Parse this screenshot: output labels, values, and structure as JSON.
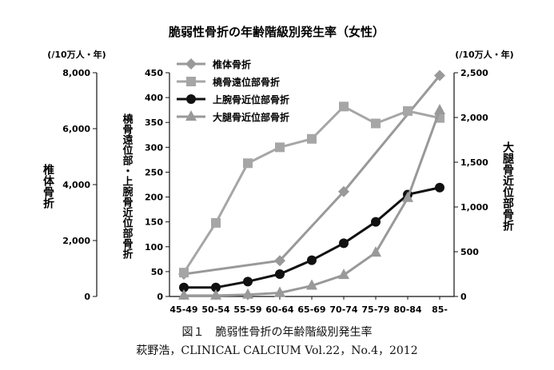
{
  "chart_data": {
    "type": "line",
    "title": "脆弱性骨折の年齢階級別発生率（女性）",
    "categories": [
      "45-49",
      "50-54",
      "55-59",
      "60-64",
      "65-69",
      "70-74",
      "75-79",
      "80-84",
      "85-"
    ],
    "axes": {
      "left_outer": {
        "label": "椎体骨折",
        "unit": "(/10万人・年)",
        "ticks": [
          "8,000",
          "6,000",
          "4,000",
          "2,000",
          "0"
        ],
        "range": [
          0,
          8000
        ]
      },
      "left_inner": {
        "label": "橈骨遠位部・上腕骨近位部骨折",
        "ticks": [
          "450",
          "400",
          "350",
          "300",
          "250",
          "200",
          "150",
          "100",
          "50",
          "0"
        ],
        "range": [
          0,
          450
        ]
      },
      "right": {
        "label": "大腿骨近位部骨折",
        "unit": "(/10万人・年)",
        "ticks": [
          "2,500",
          "2,000",
          "1,500",
          "1,000",
          "500",
          "0"
        ],
        "range": [
          0,
          2500
        ]
      }
    },
    "series": [
      {
        "name": "椎体骨折",
        "axis": "left_outer",
        "marker": "diamond",
        "color": "#999999",
        "points": [
          [
            "45-49",
            800
          ],
          [
            "60-64",
            1280
          ],
          [
            "70-74",
            3750
          ],
          [
            "85-",
            7900
          ]
        ]
      },
      {
        "name": "橈骨遠位部骨折",
        "axis": "left_inner",
        "marker": "square",
        "color": "#a6a6a6",
        "points": [
          [
            "45-49",
            48
          ],
          [
            "50-54",
            148
          ],
          [
            "55-59",
            268
          ],
          [
            "60-64",
            300
          ],
          [
            "65-69",
            317
          ],
          [
            "70-74",
            382
          ],
          [
            "75-79",
            348
          ],
          [
            "80-84",
            373
          ],
          [
            "85-",
            359
          ]
        ]
      },
      {
        "name": "上腕骨近位部骨折",
        "axis": "left_inner",
        "marker": "circle",
        "color": "#111111",
        "points": [
          [
            "45-49",
            18
          ],
          [
            "50-54",
            18
          ],
          [
            "55-59",
            30
          ],
          [
            "60-64",
            45
          ],
          [
            "65-69",
            73
          ],
          [
            "70-74",
            107
          ],
          [
            "75-79",
            150
          ],
          [
            "80-84",
            205
          ],
          [
            "85-",
            219
          ]
        ]
      },
      {
        "name": "大腿骨近位部骨折",
        "axis": "right",
        "marker": "triangle",
        "color": "#999999",
        "points": [
          [
            "45-49",
            10
          ],
          [
            "50-54",
            10
          ],
          [
            "55-59",
            20
          ],
          [
            "60-64",
            40
          ],
          [
            "65-69",
            120
          ],
          [
            "70-74",
            240
          ],
          [
            "75-79",
            490
          ],
          [
            "80-84",
            1100
          ],
          [
            "85-",
            2080
          ]
        ]
      }
    ],
    "legend": {
      "position": "top-left",
      "items": [
        "椎体骨折",
        "橈骨遠位部骨折",
        "上腕骨近位部骨折",
        "大腿骨近位部骨折"
      ]
    },
    "grid": false
  },
  "captions": {
    "line1": "図１　脆弱性骨折の年齢階級別発生率",
    "line2": "萩野浩，CLINICAL CALCIUM Vol.22，No.4，2012"
  }
}
